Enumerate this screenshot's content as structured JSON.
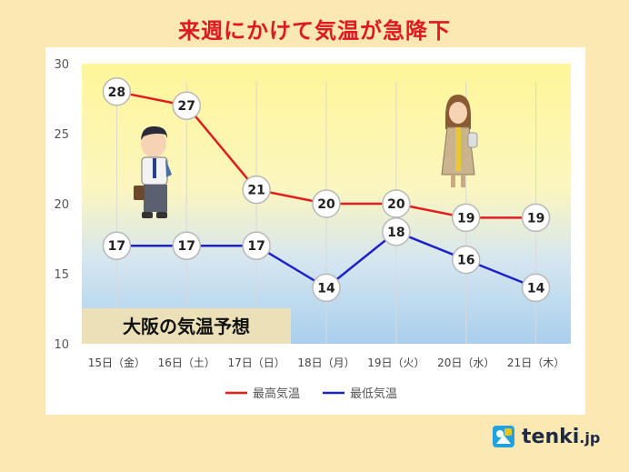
{
  "title": "来週にかけて気温が急降下",
  "subtitle_box": "大阪の気温予想",
  "brand": {
    "name": "tenki",
    "suffix": ".jp"
  },
  "colors": {
    "max": "#e31d1d",
    "min": "#1d22c8",
    "title": "#e0191e"
  },
  "chart_data": {
    "type": "line",
    "categories": [
      "15日（金）",
      "16日（土）",
      "17日（日）",
      "18日（月）",
      "19日（火）",
      "20日（水）",
      "21日（木）"
    ],
    "series": [
      {
        "name": "最高気温",
        "values": [
          28,
          27,
          21,
          20,
          20,
          19,
          19
        ],
        "color": "#e31d1d"
      },
      {
        "name": "最低気温",
        "values": [
          17,
          17,
          17,
          14,
          18,
          16,
          14
        ],
        "color": "#1d22c8"
      }
    ],
    "ylim": [
      10,
      30
    ],
    "yticks": [
      10,
      15,
      20,
      25,
      30
    ],
    "legend_position": "bottom",
    "grid": false
  }
}
